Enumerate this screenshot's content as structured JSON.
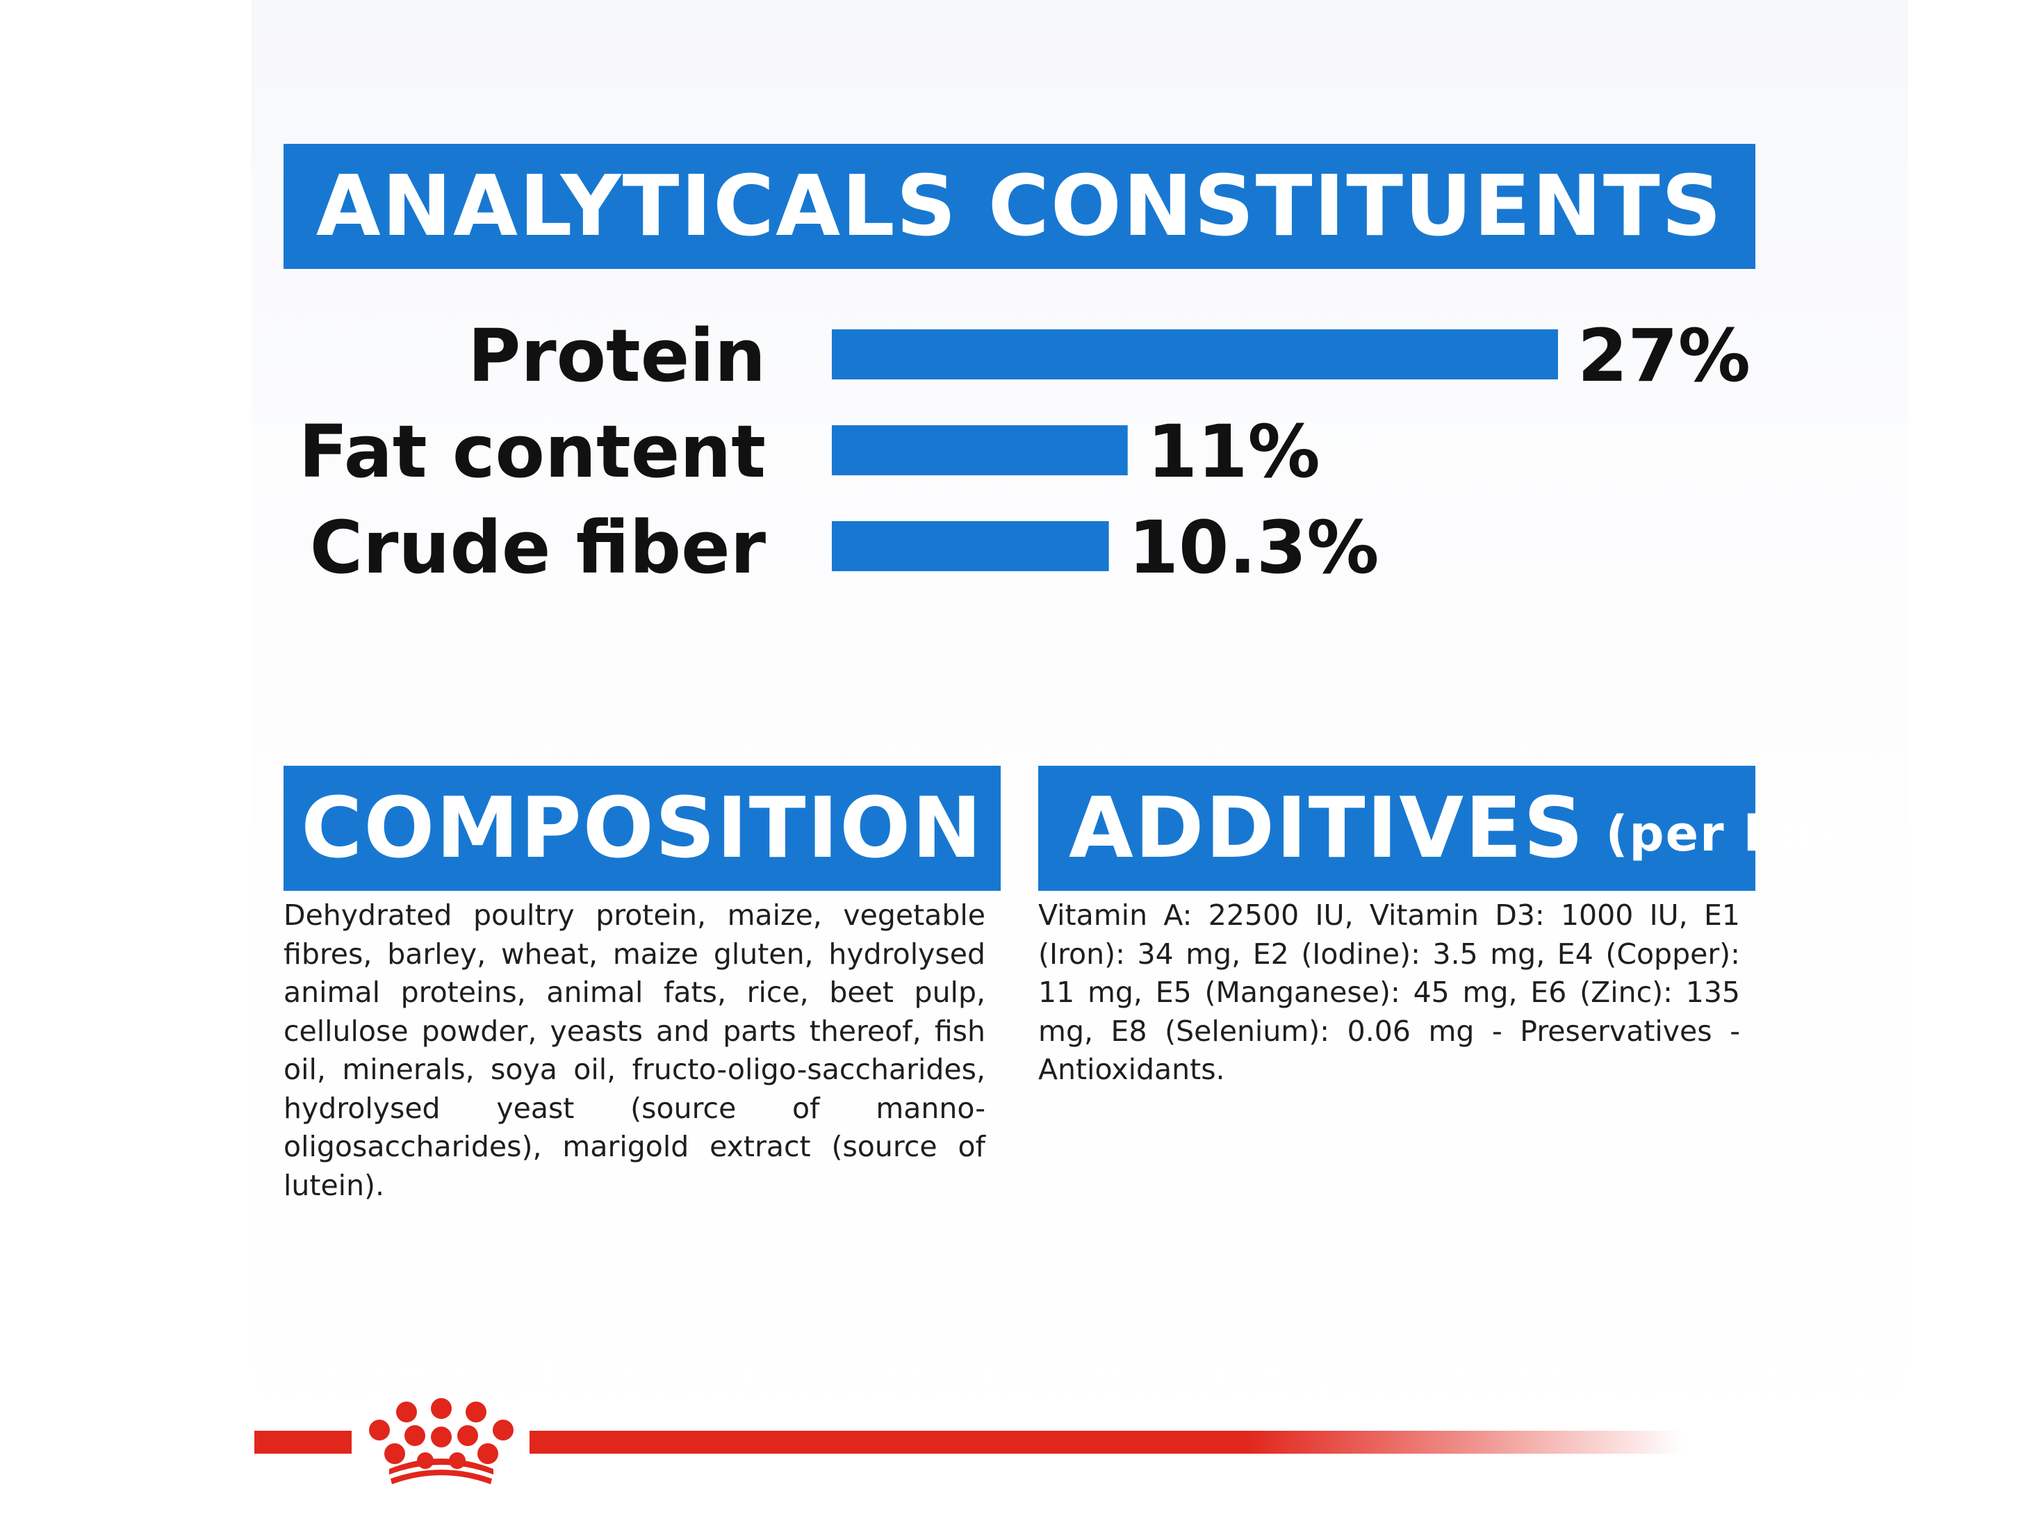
{
  "analytical_title": "ANALYTICALS CONSTITUENTS",
  "composition": {
    "title": "COMPOSITION",
    "text": "Dehydrated poultry protein, maize, vegetable fibres, barley, wheat, maize gluten, hydrolysed animal proteins, animal fats, rice, beet pulp, cellulose powder, yeasts and parts thereof, fish oil, minerals, soya oil, fructo-oligo-saccharides, hydrolysed yeast (source of manno-oligosaccharides), marigold extract (source of lutein)."
  },
  "additives": {
    "title": "ADDITIVES",
    "unit": "(per kg)",
    "text": "Vitamin A: 22500 IU, Vitamin D3: 1000 IU, E1 (Iron): 34 mg, E2 (Iodine): 3.5 mg, E4 (Copper): 11 mg, E5 (Manganese): 45 mg, E6 (Zinc): 135 mg, E8 (Selenium): 0.06 mg - Preservatives - Antioxidants."
  },
  "chart_data": {
    "type": "bar",
    "orientation": "horizontal",
    "categories": [
      "Protein",
      "Fat content",
      "Crude fiber"
    ],
    "values": [
      27,
      11,
      10.3
    ],
    "value_labels": [
      "27%",
      "11%",
      "10.3%"
    ],
    "unit": "%",
    "grid": false,
    "bar_color": "#1878d1"
  },
  "colors": {
    "accent_blue": "#1878d1",
    "brand_red": "#e1261c"
  },
  "icons": {
    "logo": "royal-canin-crown-icon"
  }
}
